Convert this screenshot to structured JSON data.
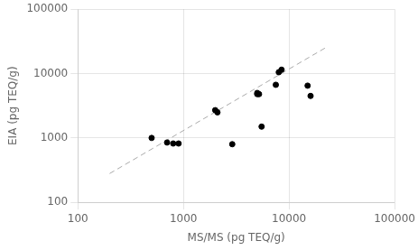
{
  "chart_data": {
    "type": "scatter",
    "xlabel": "MS/MS (pg TEQ/g)",
    "ylabel": "EIA (pg TEQ/g)",
    "log": true,
    "grid": true,
    "xlim": [
      100,
      100000
    ],
    "ylim": [
      100,
      100000
    ],
    "xticks": [
      100,
      1000,
      10000,
      100000
    ],
    "yticks": [
      100,
      1000,
      10000,
      100000
    ],
    "series": [
      {
        "type": "scatter",
        "color": "#000000",
        "marker": "circle",
        "x": [
          500,
          700,
          800,
          900,
          2000,
          2100,
          2900,
          5000,
          5000,
          5200,
          5500,
          7500,
          8000,
          8500,
          15000,
          16000
        ],
        "values": [
          1000,
          850,
          820,
          820,
          2700,
          2500,
          800,
          5000,
          4800,
          4800,
          1500,
          6700,
          10500,
          11500,
          6500,
          4500
        ]
      },
      {
        "type": "line",
        "color": "#aaaaaa",
        "line_style": "dashed",
        "x": [
          200,
          22000
        ],
        "values": [
          280,
          25000
        ]
      }
    ]
  }
}
